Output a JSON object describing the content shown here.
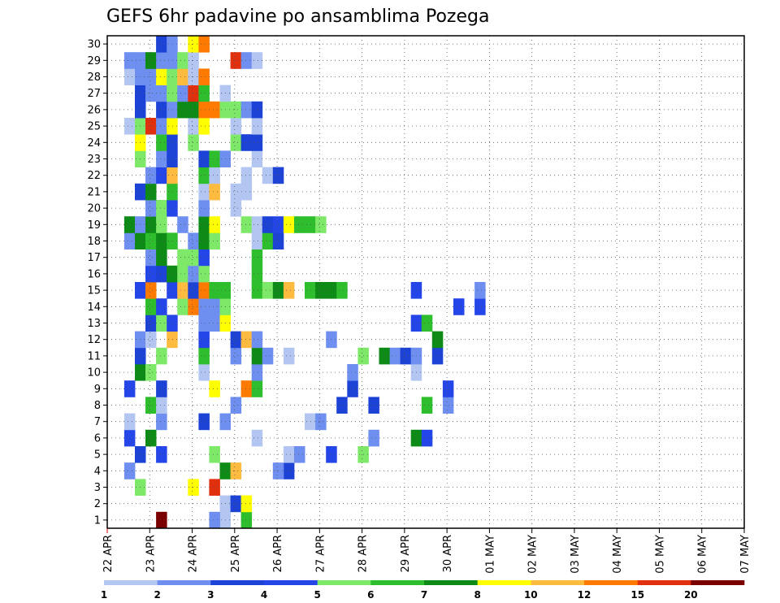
{
  "chart_data": {
    "type": "heatmap",
    "title": "GEFS 6hr padavine po ansamblima Pozega",
    "xlabel": "",
    "ylabel": "",
    "x_tick_labels": [
      "22 APR",
      "23 APR",
      "24 APR",
      "25 APR",
      "26 APR",
      "27 APR",
      "28 APR",
      "29 APR",
      "30 APR",
      "01 MAY",
      "02 MAY",
      "03 MAY",
      "04 MAY",
      "05 MAY",
      "06 MAY",
      "07 MAY"
    ],
    "y_tick_labels": [
      "1",
      "2",
      "3",
      "4",
      "5",
      "6",
      "7",
      "8",
      "9",
      "10",
      "11",
      "12",
      "13",
      "14",
      "15",
      "16",
      "17",
      "18",
      "19",
      "20",
      "21",
      "22",
      "23",
      "24",
      "25",
      "26",
      "27",
      "28",
      "29",
      "30"
    ],
    "y_range": [
      0.5,
      30.5
    ],
    "time_steps_per_day": 4,
    "num_time_steps": 60,
    "grid": true,
    "colorbar": {
      "labels": [
        "1",
        "2",
        "3",
        "4",
        "5",
        "6",
        "7",
        "8",
        "10",
        "12",
        "15",
        "20"
      ],
      "colors": [
        "#b3c6f2",
        "#6e8ff0",
        "#1c43d6",
        "#2446e8",
        "#7ee868",
        "#2dbd2d",
        "#0e8a16",
        "#ffff00",
        "#ffbb40",
        "#ff7a00",
        "#e0300e",
        "#7a0000"
      ]
    },
    "series": [
      {
        "name": "1",
        "cells": [
          [
            10,
            1
          ],
          [
            9,
            2
          ],
          [
            12,
            6
          ],
          [
            4,
            14
          ]
        ]
      },
      {
        "name": "2",
        "cells": [
          [
            10,
            1
          ],
          [
            11,
            3
          ],
          [
            12,
            8
          ]
        ]
      },
      {
        "name": "3",
        "cells": [
          [
            2,
            5
          ],
          [
            7,
            8
          ],
          [
            9,
            11
          ]
        ]
      },
      {
        "name": "4",
        "cells": [
          [
            1,
            2
          ],
          [
            10,
            7
          ],
          [
            11,
            9
          ],
          [
            16,
            3
          ],
          [
            15,
            2
          ]
        ]
      },
      {
        "name": "5",
        "cells": [
          [
            2,
            3
          ],
          [
            4,
            4
          ],
          [
            9,
            5
          ],
          [
            16,
            1
          ],
          [
            17,
            2
          ],
          [
            20,
            4
          ],
          [
            23,
            5
          ]
        ]
      },
      {
        "name": "6",
        "cells": [
          [
            1,
            4
          ],
          [
            3,
            7
          ],
          [
            13,
            1
          ],
          [
            24,
            2
          ],
          [
            28,
            7
          ],
          [
            29,
            4
          ]
        ]
      },
      {
        "name": "7",
        "cells": [
          [
            1,
            1
          ],
          [
            4,
            2
          ],
          [
            8,
            3
          ],
          [
            10,
            2
          ],
          [
            18,
            1
          ],
          [
            19,
            2
          ]
        ]
      },
      {
        "name": "8",
        "cells": [
          [
            3,
            6
          ],
          [
            4,
            1
          ],
          [
            11,
            2
          ],
          [
            21,
            3
          ],
          [
            24,
            3
          ],
          [
            29,
            6
          ],
          [
            31,
            2
          ]
        ]
      },
      {
        "name": "9",
        "cells": [
          [
            1,
            4
          ],
          [
            4,
            3
          ],
          [
            9,
            8
          ],
          [
            12,
            10
          ],
          [
            13,
            6
          ],
          [
            22,
            3
          ],
          [
            31,
            4
          ]
        ]
      },
      {
        "name": "10",
        "cells": [
          [
            2,
            7
          ],
          [
            3,
            5
          ],
          [
            8,
            1
          ],
          [
            13,
            2
          ],
          [
            22,
            2
          ],
          [
            28,
            1
          ]
        ]
      },
      {
        "name": "11",
        "cells": [
          [
            2,
            3
          ],
          [
            4,
            5
          ],
          [
            8,
            6
          ],
          [
            11,
            2
          ],
          [
            13,
            7
          ],
          [
            14,
            2
          ],
          [
            16,
            1
          ],
          [
            23,
            5
          ],
          [
            25,
            7
          ],
          [
            26,
            2
          ],
          [
            27,
            3
          ],
          [
            28,
            2
          ],
          [
            30,
            3
          ]
        ]
      },
      {
        "name": "12",
        "cells": [
          [
            2,
            2
          ],
          [
            3,
            1
          ],
          [
            5,
            9
          ],
          [
            8,
            4
          ],
          [
            11,
            3
          ],
          [
            12,
            9
          ],
          [
            13,
            2
          ],
          [
            20,
            2
          ],
          [
            30,
            7
          ]
        ]
      },
      {
        "name": "13",
        "cells": [
          [
            3,
            3
          ],
          [
            4,
            5
          ],
          [
            5,
            4
          ],
          [
            8,
            2
          ],
          [
            9,
            2
          ],
          [
            10,
            8
          ],
          [
            28,
            4
          ],
          [
            29,
            6
          ]
        ]
      },
      {
        "name": "14",
        "cells": [
          [
            3,
            6
          ],
          [
            4,
            4
          ],
          [
            6,
            5
          ],
          [
            7,
            10
          ],
          [
            8,
            2
          ],
          [
            9,
            2
          ],
          [
            10,
            5
          ],
          [
            32,
            4
          ],
          [
            34,
            4
          ]
        ]
      },
      {
        "name": "15",
        "cells": [
          [
            2,
            4
          ],
          [
            3,
            10
          ],
          [
            5,
            4
          ],
          [
            6,
            9
          ],
          [
            7,
            3
          ],
          [
            8,
            10
          ],
          [
            9,
            6
          ],
          [
            10,
            6
          ],
          [
            13,
            6
          ],
          [
            14,
            5
          ],
          [
            15,
            7
          ],
          [
            16,
            9
          ],
          [
            18,
            6
          ],
          [
            19,
            7
          ],
          [
            20,
            7
          ],
          [
            21,
            6
          ],
          [
            28,
            4
          ],
          [
            34,
            2
          ]
        ]
      },
      {
        "name": "16",
        "cells": [
          [
            3,
            4
          ],
          [
            4,
            3
          ],
          [
            5,
            7
          ],
          [
            6,
            5
          ],
          [
            7,
            2
          ],
          [
            8,
            5
          ],
          [
            13,
            6
          ]
        ]
      },
      {
        "name": "17",
        "cells": [
          [
            3,
            2
          ],
          [
            4,
            7
          ],
          [
            6,
            5
          ],
          [
            7,
            5
          ],
          [
            8,
            4
          ],
          [
            13,
            6
          ]
        ]
      },
      {
        "name": "18",
        "cells": [
          [
            1,
            2
          ],
          [
            2,
            7
          ],
          [
            3,
            6
          ],
          [
            4,
            7
          ],
          [
            5,
            6
          ],
          [
            7,
            2
          ],
          [
            8,
            7
          ],
          [
            9,
            5
          ],
          [
            13,
            1
          ],
          [
            14,
            6
          ],
          [
            15,
            3
          ]
        ]
      },
      {
        "name": "19",
        "cells": [
          [
            1,
            7
          ],
          [
            2,
            2
          ],
          [
            3,
            7
          ],
          [
            4,
            5
          ],
          [
            6,
            2
          ],
          [
            8,
            7
          ],
          [
            9,
            8
          ],
          [
            12,
            5
          ],
          [
            13,
            1
          ],
          [
            14,
            3
          ],
          [
            15,
            4
          ],
          [
            16,
            8
          ],
          [
            17,
            6
          ],
          [
            18,
            6
          ],
          [
            19,
            5
          ]
        ]
      },
      {
        "name": "20",
        "cells": [
          [
            3,
            2
          ],
          [
            4,
            5
          ],
          [
            5,
            4
          ],
          [
            8,
            2
          ],
          [
            11,
            1
          ]
        ]
      },
      {
        "name": "21",
        "cells": [
          [
            2,
            3
          ],
          [
            3,
            7
          ],
          [
            5,
            6
          ],
          [
            8,
            1
          ],
          [
            9,
            9
          ],
          [
            11,
            1
          ],
          [
            12,
            1
          ]
        ]
      },
      {
        "name": "22",
        "cells": [
          [
            3,
            2
          ],
          [
            4,
            4
          ],
          [
            5,
            9
          ],
          [
            8,
            6
          ],
          [
            9,
            1
          ],
          [
            12,
            1
          ],
          [
            14,
            1
          ],
          [
            15,
            3
          ]
        ]
      },
      {
        "name": "23",
        "cells": [
          [
            2,
            5
          ],
          [
            4,
            2
          ],
          [
            5,
            3
          ],
          [
            8,
            3
          ],
          [
            9,
            6
          ],
          [
            10,
            2
          ],
          [
            13,
            1
          ]
        ]
      },
      {
        "name": "24",
        "cells": [
          [
            2,
            8
          ],
          [
            4,
            6
          ],
          [
            5,
            3
          ],
          [
            7,
            5
          ],
          [
            11,
            5
          ],
          [
            12,
            3
          ],
          [
            13,
            3
          ]
        ]
      },
      {
        "name": "25",
        "cells": [
          [
            1,
            1
          ],
          [
            2,
            5
          ],
          [
            3,
            11
          ],
          [
            4,
            2
          ],
          [
            5,
            8
          ],
          [
            7,
            1
          ],
          [
            8,
            8
          ],
          [
            11,
            1
          ],
          [
            13,
            1
          ]
        ]
      },
      {
        "name": "26",
        "cells": [
          [
            2,
            3
          ],
          [
            4,
            3
          ],
          [
            5,
            2
          ],
          [
            6,
            7
          ],
          [
            7,
            7
          ],
          [
            8,
            10
          ],
          [
            9,
            10
          ],
          [
            10,
            5
          ],
          [
            11,
            5
          ],
          [
            12,
            2
          ],
          [
            13,
            3
          ]
        ]
      },
      {
        "name": "27",
        "cells": [
          [
            2,
            3
          ],
          [
            3,
            2
          ],
          [
            4,
            2
          ],
          [
            5,
            5
          ],
          [
            6,
            2
          ],
          [
            7,
            11
          ],
          [
            8,
            6
          ],
          [
            10,
            1
          ]
        ]
      },
      {
        "name": "28",
        "cells": [
          [
            1,
            1
          ],
          [
            2,
            2
          ],
          [
            3,
            2
          ],
          [
            4,
            8
          ],
          [
            5,
            5
          ],
          [
            6,
            9
          ],
          [
            7,
            1
          ],
          [
            8,
            10
          ]
        ]
      },
      {
        "name": "29",
        "cells": [
          [
            1,
            2
          ],
          [
            2,
            2
          ],
          [
            3,
            7
          ],
          [
            4,
            2
          ],
          [
            5,
            2
          ],
          [
            6,
            5
          ],
          [
            7,
            1
          ],
          [
            11,
            11
          ],
          [
            12,
            2
          ],
          [
            13,
            1
          ]
        ]
      },
      {
        "name": "30",
        "cells": [
          [
            4,
            3
          ],
          [
            5,
            2
          ],
          [
            7,
            8
          ],
          [
            8,
            10
          ]
        ]
      }
    ]
  }
}
